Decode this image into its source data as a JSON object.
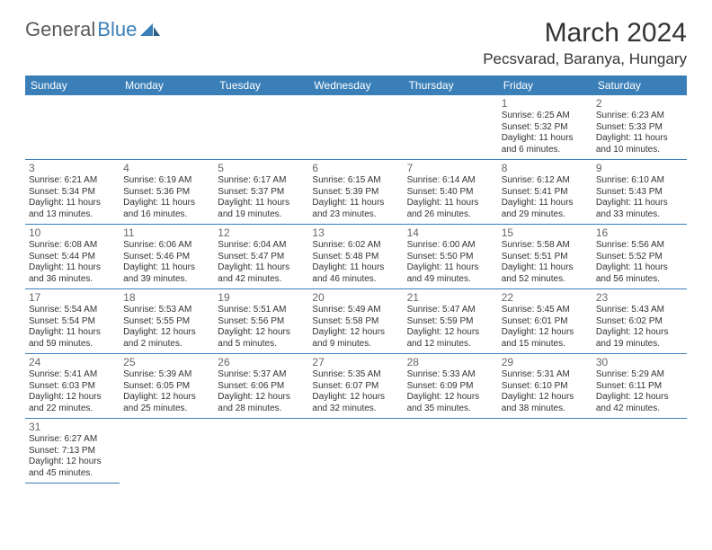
{
  "brand": {
    "part1": "General",
    "part2": "Blue"
  },
  "title": "March 2024",
  "location": "Pecsvarad, Baranya, Hungary",
  "colors": {
    "header_bg": "#3b7fb8",
    "header_text": "#ffffff",
    "divider": "#3b7fb8",
    "daynum": "#666666",
    "body_text": "#333333",
    "logo_general": "#5a5a5a",
    "logo_blue": "#3b7fb8",
    "background": "#ffffff"
  },
  "typography": {
    "month_title_size": 30,
    "location_size": 17,
    "dayheader_size": 12,
    "daynum_size": 12,
    "detail_size": 10
  },
  "weekdays": [
    "Sunday",
    "Monday",
    "Tuesday",
    "Wednesday",
    "Thursday",
    "Friday",
    "Saturday"
  ],
  "weeks": [
    [
      null,
      null,
      null,
      null,
      null,
      {
        "n": "1",
        "sr": "Sunrise: 6:25 AM",
        "ss": "Sunset: 5:32 PM",
        "dl1": "Daylight: 11 hours",
        "dl2": "and 6 minutes."
      },
      {
        "n": "2",
        "sr": "Sunrise: 6:23 AM",
        "ss": "Sunset: 5:33 PM",
        "dl1": "Daylight: 11 hours",
        "dl2": "and 10 minutes."
      }
    ],
    [
      {
        "n": "3",
        "sr": "Sunrise: 6:21 AM",
        "ss": "Sunset: 5:34 PM",
        "dl1": "Daylight: 11 hours",
        "dl2": "and 13 minutes."
      },
      {
        "n": "4",
        "sr": "Sunrise: 6:19 AM",
        "ss": "Sunset: 5:36 PM",
        "dl1": "Daylight: 11 hours",
        "dl2": "and 16 minutes."
      },
      {
        "n": "5",
        "sr": "Sunrise: 6:17 AM",
        "ss": "Sunset: 5:37 PM",
        "dl1": "Daylight: 11 hours",
        "dl2": "and 19 minutes."
      },
      {
        "n": "6",
        "sr": "Sunrise: 6:15 AM",
        "ss": "Sunset: 5:39 PM",
        "dl1": "Daylight: 11 hours",
        "dl2": "and 23 minutes."
      },
      {
        "n": "7",
        "sr": "Sunrise: 6:14 AM",
        "ss": "Sunset: 5:40 PM",
        "dl1": "Daylight: 11 hours",
        "dl2": "and 26 minutes."
      },
      {
        "n": "8",
        "sr": "Sunrise: 6:12 AM",
        "ss": "Sunset: 5:41 PM",
        "dl1": "Daylight: 11 hours",
        "dl2": "and 29 minutes."
      },
      {
        "n": "9",
        "sr": "Sunrise: 6:10 AM",
        "ss": "Sunset: 5:43 PM",
        "dl1": "Daylight: 11 hours",
        "dl2": "and 33 minutes."
      }
    ],
    [
      {
        "n": "10",
        "sr": "Sunrise: 6:08 AM",
        "ss": "Sunset: 5:44 PM",
        "dl1": "Daylight: 11 hours",
        "dl2": "and 36 minutes."
      },
      {
        "n": "11",
        "sr": "Sunrise: 6:06 AM",
        "ss": "Sunset: 5:46 PM",
        "dl1": "Daylight: 11 hours",
        "dl2": "and 39 minutes."
      },
      {
        "n": "12",
        "sr": "Sunrise: 6:04 AM",
        "ss": "Sunset: 5:47 PM",
        "dl1": "Daylight: 11 hours",
        "dl2": "and 42 minutes."
      },
      {
        "n": "13",
        "sr": "Sunrise: 6:02 AM",
        "ss": "Sunset: 5:48 PM",
        "dl1": "Daylight: 11 hours",
        "dl2": "and 46 minutes."
      },
      {
        "n": "14",
        "sr": "Sunrise: 6:00 AM",
        "ss": "Sunset: 5:50 PM",
        "dl1": "Daylight: 11 hours",
        "dl2": "and 49 minutes."
      },
      {
        "n": "15",
        "sr": "Sunrise: 5:58 AM",
        "ss": "Sunset: 5:51 PM",
        "dl1": "Daylight: 11 hours",
        "dl2": "and 52 minutes."
      },
      {
        "n": "16",
        "sr": "Sunrise: 5:56 AM",
        "ss": "Sunset: 5:52 PM",
        "dl1": "Daylight: 11 hours",
        "dl2": "and 56 minutes."
      }
    ],
    [
      {
        "n": "17",
        "sr": "Sunrise: 5:54 AM",
        "ss": "Sunset: 5:54 PM",
        "dl1": "Daylight: 11 hours",
        "dl2": "and 59 minutes."
      },
      {
        "n": "18",
        "sr": "Sunrise: 5:53 AM",
        "ss": "Sunset: 5:55 PM",
        "dl1": "Daylight: 12 hours",
        "dl2": "and 2 minutes."
      },
      {
        "n": "19",
        "sr": "Sunrise: 5:51 AM",
        "ss": "Sunset: 5:56 PM",
        "dl1": "Daylight: 12 hours",
        "dl2": "and 5 minutes."
      },
      {
        "n": "20",
        "sr": "Sunrise: 5:49 AM",
        "ss": "Sunset: 5:58 PM",
        "dl1": "Daylight: 12 hours",
        "dl2": "and 9 minutes."
      },
      {
        "n": "21",
        "sr": "Sunrise: 5:47 AM",
        "ss": "Sunset: 5:59 PM",
        "dl1": "Daylight: 12 hours",
        "dl2": "and 12 minutes."
      },
      {
        "n": "22",
        "sr": "Sunrise: 5:45 AM",
        "ss": "Sunset: 6:01 PM",
        "dl1": "Daylight: 12 hours",
        "dl2": "and 15 minutes."
      },
      {
        "n": "23",
        "sr": "Sunrise: 5:43 AM",
        "ss": "Sunset: 6:02 PM",
        "dl1": "Daylight: 12 hours",
        "dl2": "and 19 minutes."
      }
    ],
    [
      {
        "n": "24",
        "sr": "Sunrise: 5:41 AM",
        "ss": "Sunset: 6:03 PM",
        "dl1": "Daylight: 12 hours",
        "dl2": "and 22 minutes."
      },
      {
        "n": "25",
        "sr": "Sunrise: 5:39 AM",
        "ss": "Sunset: 6:05 PM",
        "dl1": "Daylight: 12 hours",
        "dl2": "and 25 minutes."
      },
      {
        "n": "26",
        "sr": "Sunrise: 5:37 AM",
        "ss": "Sunset: 6:06 PM",
        "dl1": "Daylight: 12 hours",
        "dl2": "and 28 minutes."
      },
      {
        "n": "27",
        "sr": "Sunrise: 5:35 AM",
        "ss": "Sunset: 6:07 PM",
        "dl1": "Daylight: 12 hours",
        "dl2": "and 32 minutes."
      },
      {
        "n": "28",
        "sr": "Sunrise: 5:33 AM",
        "ss": "Sunset: 6:09 PM",
        "dl1": "Daylight: 12 hours",
        "dl2": "and 35 minutes."
      },
      {
        "n": "29",
        "sr": "Sunrise: 5:31 AM",
        "ss": "Sunset: 6:10 PM",
        "dl1": "Daylight: 12 hours",
        "dl2": "and 38 minutes."
      },
      {
        "n": "30",
        "sr": "Sunrise: 5:29 AM",
        "ss": "Sunset: 6:11 PM",
        "dl1": "Daylight: 12 hours",
        "dl2": "and 42 minutes."
      }
    ],
    [
      {
        "n": "31",
        "sr": "Sunrise: 6:27 AM",
        "ss": "Sunset: 7:13 PM",
        "dl1": "Daylight: 12 hours",
        "dl2": "and 45 minutes."
      },
      null,
      null,
      null,
      null,
      null,
      null
    ]
  ]
}
